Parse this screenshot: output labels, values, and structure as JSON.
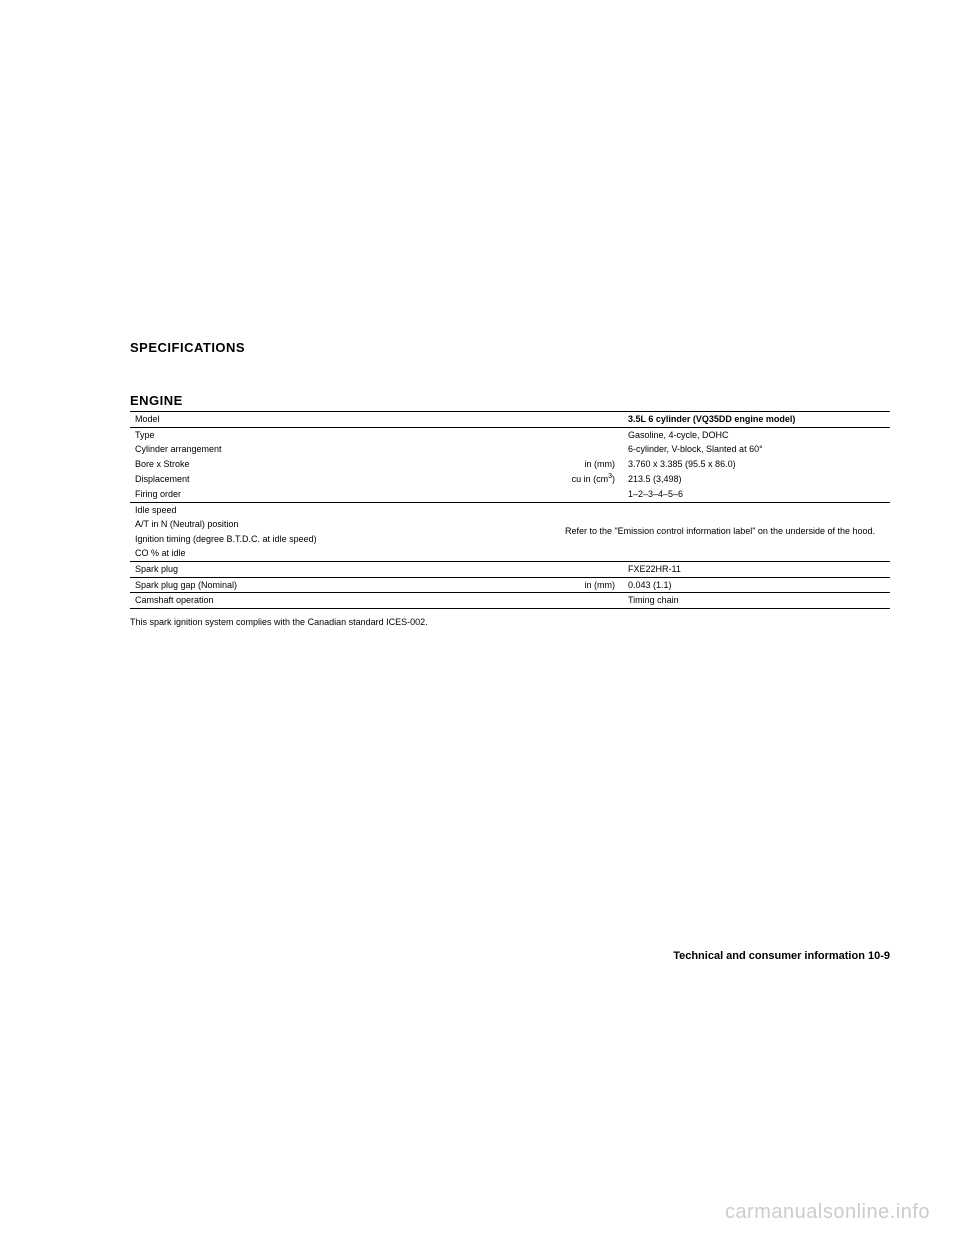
{
  "headers": {
    "specifications": "SPECIFICATIONS",
    "engine": "ENGINE"
  },
  "table": {
    "rows": [
      {
        "label": "Model",
        "unit": "",
        "value": "3.5L 6 cylinder (VQ35DD engine model)"
      },
      {
        "label": "Type",
        "unit": "",
        "value": "Gasoline, 4-cycle, DOHC"
      },
      {
        "label": "Cylinder arrangement",
        "unit": "",
        "value": "6-cylinder, V-block, Slanted at 60°"
      },
      {
        "label": "Bore x Stroke",
        "unit": "in (mm)",
        "value": "3.760 x 3.385 (95.5 x 86.0)"
      },
      {
        "label": "Displacement",
        "unit": "cu in (cm³)",
        "value": "213.5 (3,498)"
      },
      {
        "label": "Firing order",
        "unit": "",
        "value": "1–2–3–4–5–6"
      },
      {
        "label": "Idle speed",
        "unit": "",
        "value": ""
      },
      {
        "label": "A/T in N (Neutral) position",
        "unit": "",
        "value": ""
      },
      {
        "label": "Ignition timing (degree B.T.D.C. at idle speed)",
        "unit": "",
        "value": ""
      },
      {
        "label": "CO % at idle",
        "unit": "",
        "value": ""
      },
      {
        "label": "Spark plug",
        "unit": "",
        "value": "FXE22HR-11"
      },
      {
        "label": "Spark plug gap (Nominal)",
        "unit": "in (mm)",
        "value": "0.043 (1.1)"
      },
      {
        "label": "Camshaft operation",
        "unit": "",
        "value": "Timing chain"
      }
    ],
    "refer_text": "Refer to the \"Emission control information label\" on the underside of the hood."
  },
  "footnote": "This spark ignition system complies with the Canadian standard ICES-002.",
  "page_footer": "Technical and consumer information   10-9",
  "watermark": "carmanualsonline.info"
}
